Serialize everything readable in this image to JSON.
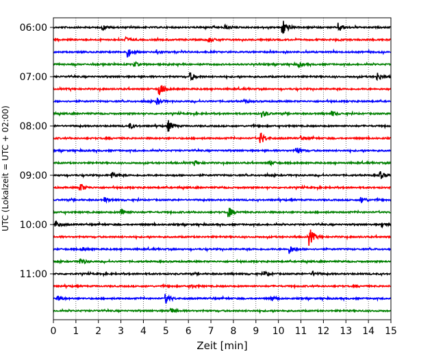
{
  "chart_data": {
    "type": "line",
    "subtype": "helicorder-seismogram",
    "title": "",
    "xlabel": "Zeit  [min]",
    "ylabel": "UTC (Lokalzeit = UTC + 02:00)",
    "xlim": [
      0,
      15
    ],
    "x_ticks": [
      0,
      1,
      2,
      3,
      4,
      5,
      6,
      7,
      8,
      9,
      10,
      11,
      12,
      13,
      14,
      15
    ],
    "y_tick_labels": [
      "06:00",
      "07:00",
      "08:00",
      "09:00",
      "10:00",
      "11:00"
    ],
    "trace_minutes_per_line": 15,
    "start_time": "06:00",
    "end_time": "11:45",
    "grid": "vertical dotted at each minute",
    "line_colors": [
      "#000000",
      "#ff0000",
      "#0000ff",
      "#008000"
    ],
    "traces": [
      {
        "start": "06:00",
        "color": "#000000",
        "events": [
          {
            "t": 10.2,
            "amp": 1.0
          },
          {
            "t": 12.7,
            "amp": 0.5
          },
          {
            "t": 2.2,
            "amp": 0.3
          },
          {
            "t": 7.6,
            "amp": 0.3
          }
        ]
      },
      {
        "start": "06:15",
        "color": "#ff0000",
        "events": [
          {
            "t": 3.2,
            "amp": 0.3
          },
          {
            "t": 6.9,
            "amp": 0.3
          }
        ]
      },
      {
        "start": "06:30",
        "color": "#0000ff",
        "events": [
          {
            "t": 3.3,
            "amp": 0.6
          },
          {
            "t": 4.6,
            "amp": 0.3
          }
        ]
      },
      {
        "start": "06:45",
        "color": "#008000",
        "events": [
          {
            "t": 3.6,
            "amp": 0.3
          },
          {
            "t": 10.9,
            "amp": 0.3
          }
        ]
      },
      {
        "start": "07:00",
        "color": "#000000",
        "events": [
          {
            "t": 6.1,
            "amp": 0.5
          },
          {
            "t": 14.4,
            "amp": 0.5
          }
        ]
      },
      {
        "start": "07:15",
        "color": "#ff0000",
        "events": [
          {
            "t": 4.7,
            "amp": 0.9
          }
        ]
      },
      {
        "start": "07:30",
        "color": "#0000ff",
        "events": [
          {
            "t": 4.6,
            "amp": 0.4
          },
          {
            "t": 8.5,
            "amp": 0.2
          }
        ]
      },
      {
        "start": "07:45",
        "color": "#008000",
        "events": [
          {
            "t": 9.3,
            "amp": 0.4
          },
          {
            "t": 12.4,
            "amp": 0.3
          }
        ]
      },
      {
        "start": "08:00",
        "color": "#000000",
        "events": [
          {
            "t": 5.1,
            "amp": 0.7
          },
          {
            "t": 3.4,
            "amp": 0.3
          }
        ]
      },
      {
        "start": "08:15",
        "color": "#ff0000",
        "events": [
          {
            "t": 9.2,
            "amp": 0.8
          },
          {
            "t": 11.0,
            "amp": 0.3
          }
        ]
      },
      {
        "start": "08:30",
        "color": "#0000ff",
        "events": [
          {
            "t": 10.8,
            "amp": 0.4
          }
        ]
      },
      {
        "start": "08:45",
        "color": "#008000",
        "events": [
          {
            "t": 6.3,
            "amp": 0.3
          },
          {
            "t": 9.6,
            "amp": 0.3
          }
        ]
      },
      {
        "start": "09:00",
        "color": "#000000",
        "events": [
          {
            "t": 2.6,
            "amp": 0.4
          },
          {
            "t": 14.5,
            "amp": 0.5
          }
        ]
      },
      {
        "start": "09:15",
        "color": "#ff0000",
        "events": [
          {
            "t": 1.2,
            "amp": 0.5
          }
        ]
      },
      {
        "start": "09:30",
        "color": "#0000ff",
        "events": [
          {
            "t": 2.3,
            "amp": 0.3
          },
          {
            "t": 13.7,
            "amp": 0.4
          }
        ]
      },
      {
        "start": "09:45",
        "color": "#008000",
        "events": [
          {
            "t": 3.0,
            "amp": 0.4
          },
          {
            "t": 7.8,
            "amp": 0.6
          }
        ]
      },
      {
        "start": "10:00",
        "color": "#000000",
        "events": [
          {
            "t": 0.1,
            "amp": 0.4
          },
          {
            "t": 14.6,
            "amp": 0.3
          }
        ]
      },
      {
        "start": "10:15",
        "color": "#ff0000",
        "events": [
          {
            "t": 11.4,
            "amp": 1.0
          }
        ]
      },
      {
        "start": "10:30",
        "color": "#0000ff",
        "events": [
          {
            "t": 10.5,
            "amp": 0.5
          },
          {
            "t": 1.3,
            "amp": 0.2
          }
        ]
      },
      {
        "start": "10:45",
        "color": "#008000",
        "events": [
          {
            "t": 1.2,
            "amp": 0.4
          }
        ]
      },
      {
        "start": "11:00",
        "color": "#000000",
        "events": [
          {
            "t": 9.4,
            "amp": 0.3
          },
          {
            "t": 11.5,
            "amp": 0.3
          }
        ]
      },
      {
        "start": "11:15",
        "color": "#ff0000",
        "events": [
          {
            "t": 6.1,
            "amp": 0.2
          }
        ]
      },
      {
        "start": "11:30",
        "color": "#0000ff",
        "events": [
          {
            "t": 5.0,
            "amp": 0.6
          },
          {
            "t": 9.7,
            "amp": 0.3
          },
          {
            "t": 0.2,
            "amp": 0.3
          }
        ]
      },
      {
        "start": "11:45",
        "color": "#008000",
        "events": [
          {
            "t": 5.2,
            "amp": 0.4
          }
        ]
      }
    ]
  }
}
